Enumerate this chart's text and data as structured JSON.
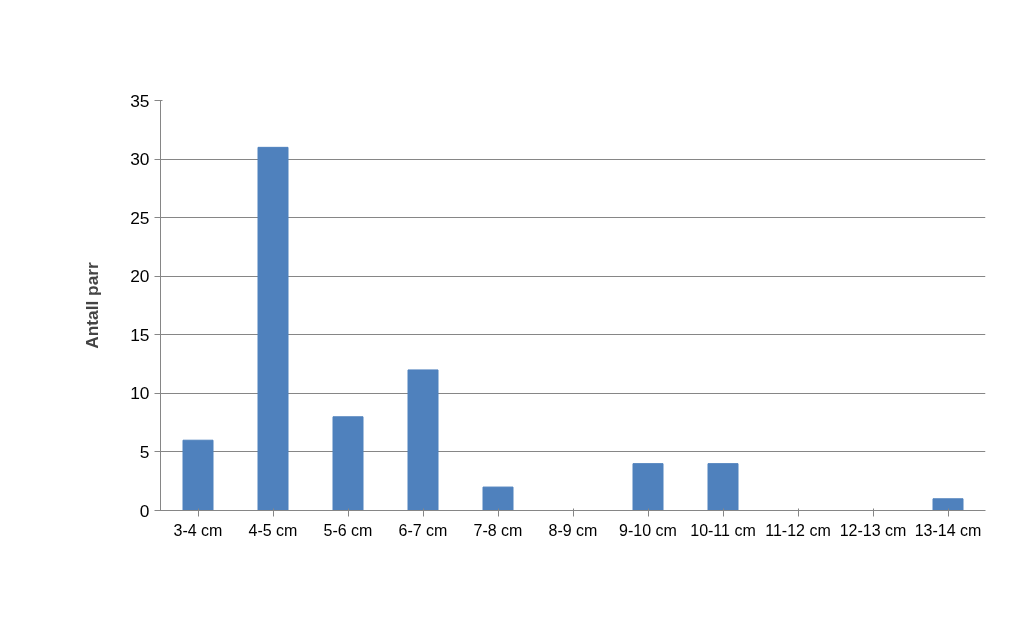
{
  "chart_data": {
    "type": "bar",
    "ylabel": "Antall parr",
    "categories": [
      "3-4 cm",
      "4-5 cm",
      "5-6 cm",
      "6-7 cm",
      "7-8 cm",
      "8-9 cm",
      "9-10 cm",
      "10-11 cm",
      "11-12 cm",
      "12-13 cm",
      "13-14 cm"
    ],
    "values": [
      6,
      31,
      8,
      12,
      2,
      0,
      4,
      4,
      0,
      0,
      1
    ],
    "color": "#4f81bd",
    "ylim": [
      0,
      35
    ],
    "yticks": [
      0,
      5,
      10,
      15,
      20,
      25,
      30,
      35
    ],
    "grid": "y"
  }
}
